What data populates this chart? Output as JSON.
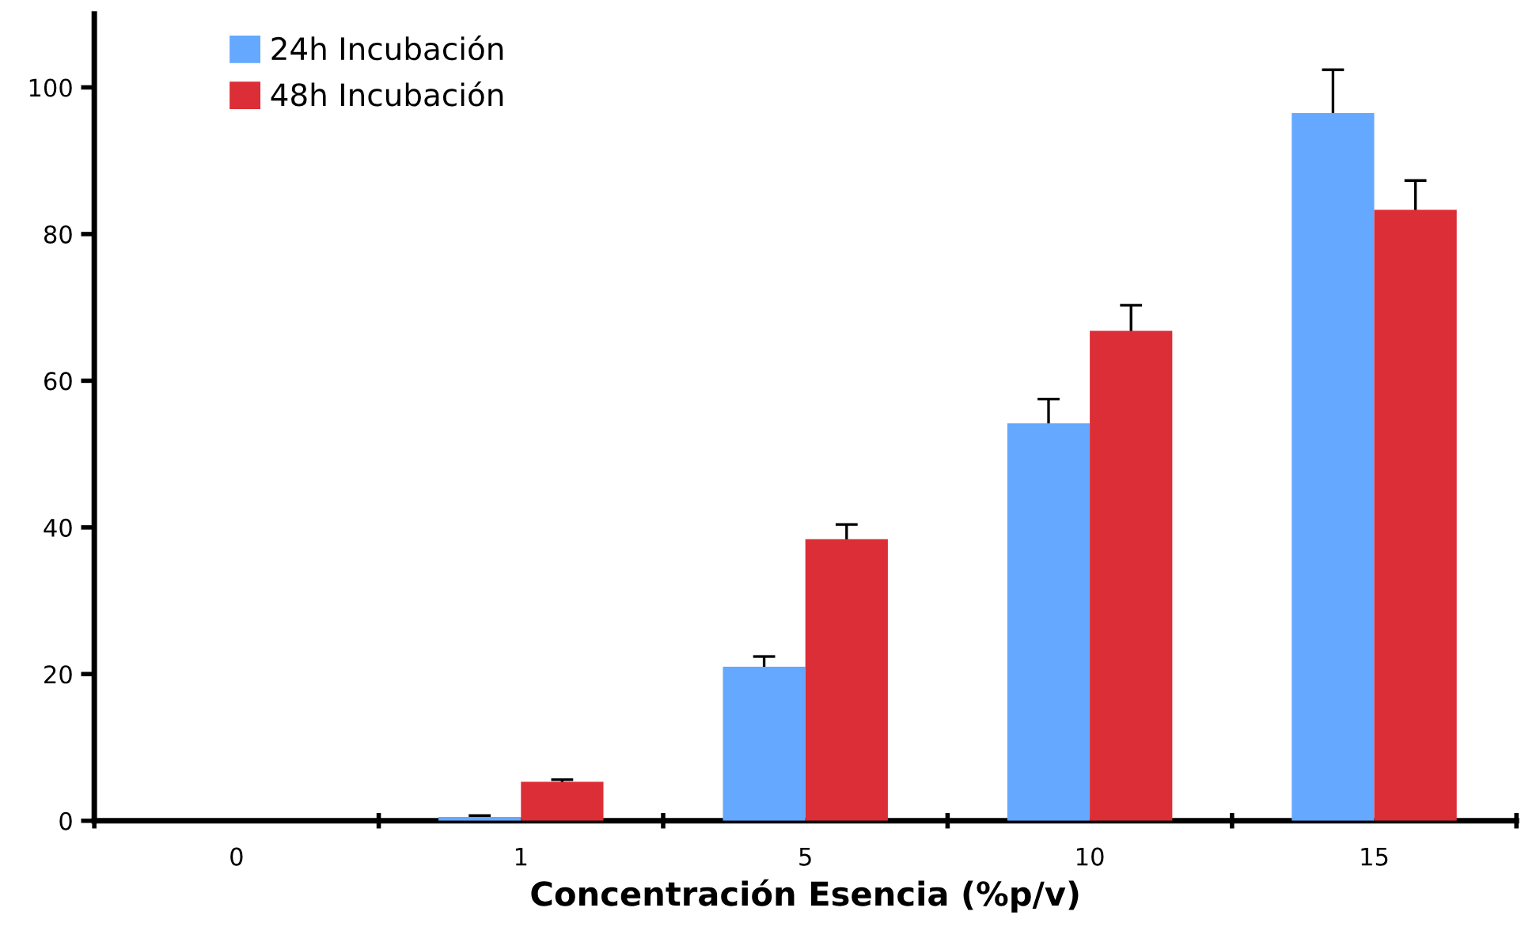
{
  "chart_data": {
    "type": "bar",
    "xlabel": "Concentración Esencia (%p/v)",
    "categories": [
      "0",
      "1",
      "5",
      "10",
      "15"
    ],
    "series": [
      {
        "name": "24h Incubación",
        "color": "#64a8ff",
        "values": [
          0,
          0.5,
          21.0,
          54.2,
          96.5
        ],
        "errors": [
          null,
          0.2,
          1.4,
          3.3,
          5.9
        ]
      },
      {
        "name": "48h Incubación",
        "color": "#dc2e36",
        "values": [
          0,
          5.3,
          38.4,
          66.8,
          83.3
        ],
        "errors": [
          null,
          0.3,
          2.0,
          3.5,
          4.0
        ]
      }
    ],
    "ylim": [
      0,
      110
    ],
    "yticks": [
      0,
      20,
      40,
      60,
      80,
      100
    ],
    "grid": false,
    "legend": "top left"
  }
}
